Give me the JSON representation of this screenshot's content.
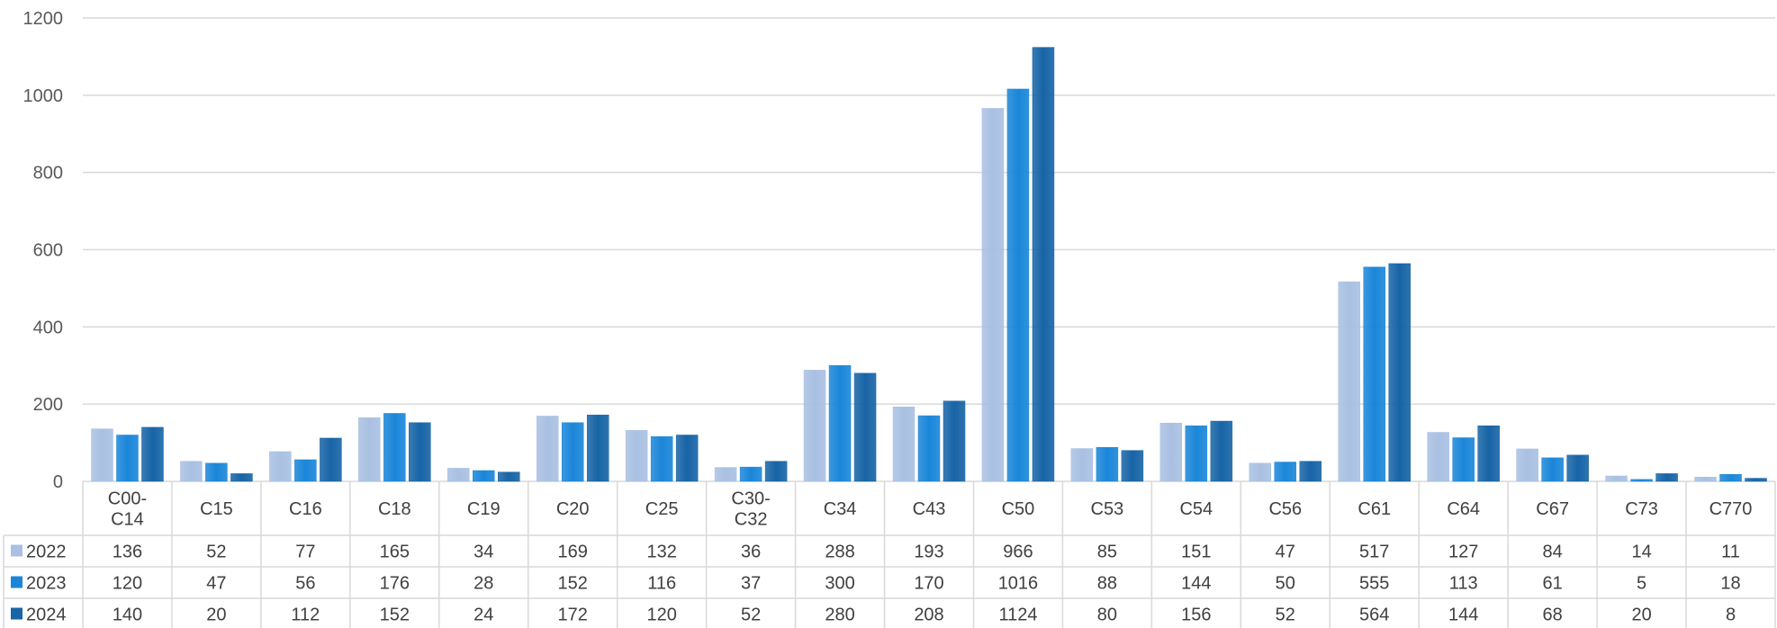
{
  "chart_data": {
    "type": "bar",
    "title": "",
    "xlabel": "",
    "ylabel": "",
    "ylim": [
      0,
      1200
    ],
    "yticks": [
      0,
      200,
      400,
      600,
      800,
      1000,
      1200
    ],
    "grid": true,
    "legend_placement": "data-table-left",
    "categories": [
      "C00-C14",
      "C15",
      "C16",
      "C18",
      "C19",
      "C20",
      "C25",
      "C30-C32",
      "C34",
      "C43",
      "C50",
      "C53",
      "C54",
      "C56",
      "C61",
      "C64",
      "C67",
      "C73",
      "C770"
    ],
    "category_lines": [
      [
        "C00-",
        "C14"
      ],
      [
        "C15"
      ],
      [
        "C16"
      ],
      [
        "C18"
      ],
      [
        "C19"
      ],
      [
        "C20"
      ],
      [
        "C25"
      ],
      [
        "C30-",
        "C32"
      ],
      [
        "C34"
      ],
      [
        "C43"
      ],
      [
        "C50"
      ],
      [
        "C53"
      ],
      [
        "C54"
      ],
      [
        "C56"
      ],
      [
        "C61"
      ],
      [
        "C64"
      ],
      [
        "C67"
      ],
      [
        "C73"
      ],
      [
        "C770"
      ]
    ],
    "series": [
      {
        "name": "2022",
        "color": "#a9c0e2",
        "values": [
          136,
          52,
          77,
          165,
          34,
          169,
          132,
          36,
          288,
          193,
          966,
          85,
          151,
          47,
          517,
          127,
          84,
          14,
          11
        ]
      },
      {
        "name": "2023",
        "color": "#1a86d9",
        "values": [
          120,
          47,
          56,
          176,
          28,
          152,
          116,
          37,
          300,
          170,
          1016,
          88,
          144,
          50,
          555,
          113,
          61,
          5,
          18
        ]
      },
      {
        "name": "2024",
        "color": "#1764a6",
        "values": [
          140,
          20,
          112,
          152,
          24,
          172,
          120,
          52,
          280,
          208,
          1124,
          80,
          156,
          52,
          564,
          144,
          68,
          20,
          8
        ]
      }
    ]
  }
}
